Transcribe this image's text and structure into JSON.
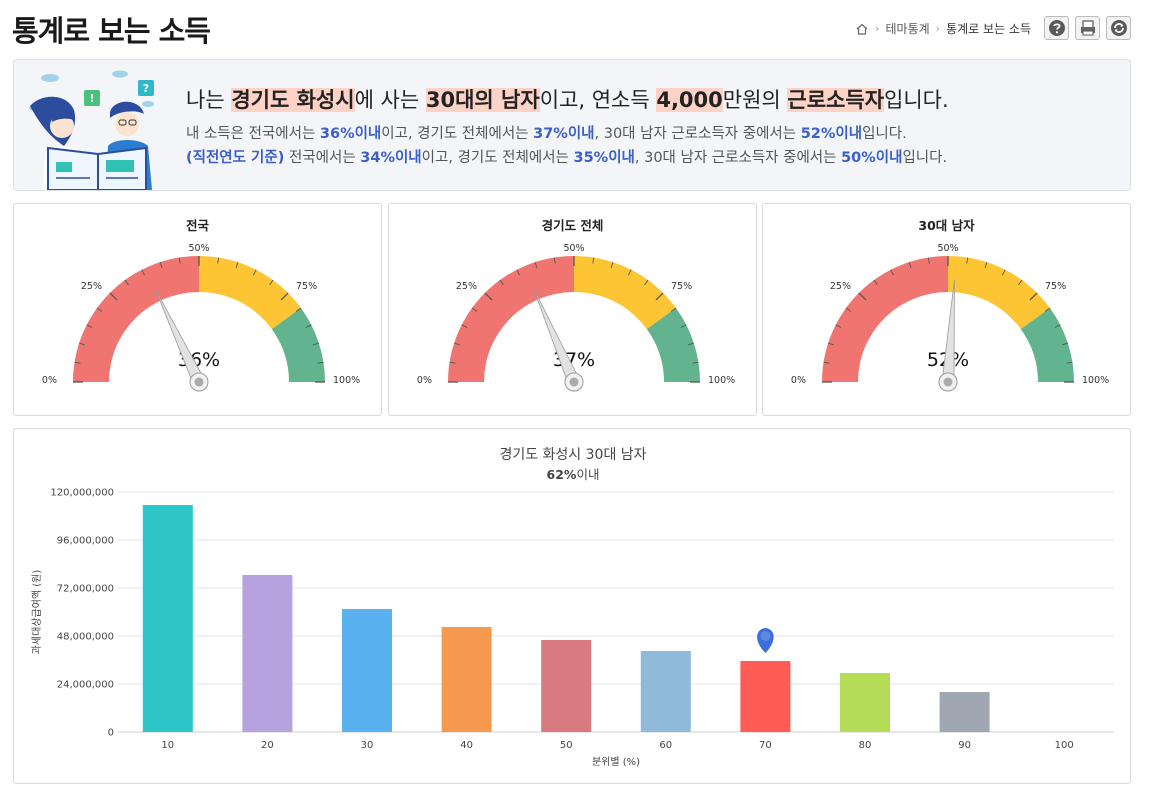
{
  "page": {
    "title": "통계로 보는 소득"
  },
  "breadcrumb": {
    "items": [
      "테마통계",
      "통계로 보는 소득"
    ]
  },
  "summary": {
    "main": [
      {
        "t": "나는 ",
        "h": false
      },
      {
        "t": "경기도 화성시",
        "h": true
      },
      {
        "t": "에 사는 ",
        "h": false
      },
      {
        "t": "30대의 남자",
        "h": true
      },
      {
        "t": "이고, 연소득 ",
        "h": false
      },
      {
        "t": "4,000",
        "h": true
      },
      {
        "t": "만원의 ",
        "h": false
      },
      {
        "t": "근로소득자",
        "h": true
      },
      {
        "t": "입니다.",
        "h": false
      }
    ],
    "line1": [
      {
        "t": "내 소득은 전국에서는 ",
        "b": false
      },
      {
        "t": "36%이내",
        "b": true
      },
      {
        "t": "이고, 경기도 전체에서는 ",
        "b": false
      },
      {
        "t": "37%이내",
        "b": true
      },
      {
        "t": ", 30대 남자 근로소득자 중에서는 ",
        "b": false
      },
      {
        "t": "52%이내",
        "b": true
      },
      {
        "t": "입니다.",
        "b": false
      }
    ],
    "line2": [
      {
        "t": "(직전연도 기준)",
        "b": true
      },
      {
        "t": " 전국에서는 ",
        "b": false
      },
      {
        "t": "34%이내",
        "b": true
      },
      {
        "t": "이고, 경기도 전체에서는 ",
        "b": false
      },
      {
        "t": "35%이내",
        "b": true
      },
      {
        "t": ", 30대 남자 근로소득자 중에서는 ",
        "b": false
      },
      {
        "t": "50%이내",
        "b": true
      },
      {
        "t": "입니다.",
        "b": false
      }
    ]
  },
  "gauges": [
    {
      "title": "전국",
      "value": 36,
      "label": "36%"
    },
    {
      "title": "경기도 전체",
      "value": 37,
      "label": "37%"
    },
    {
      "title": "30대 남자",
      "value": 52,
      "label": "52%"
    }
  ],
  "gauge_ticks": [
    "0%",
    "25%",
    "50%",
    "75%",
    "100%"
  ],
  "gauge_colors": {
    "red": "#f07470",
    "yellow": "#fdc533",
    "green": "#62b48e"
  },
  "chart_data": {
    "type": "bar",
    "title": "경기도 화성시 30대 남자",
    "subtitle_bold": "62%",
    "subtitle_rest": "이내",
    "xlabel": "분위별 (%)",
    "ylabel": "과세대상급여액 (원)",
    "categories": [
      "10",
      "20",
      "30",
      "40",
      "50",
      "60",
      "70",
      "80",
      "90",
      "100"
    ],
    "values": [
      113500000,
      78500000,
      61500000,
      52500000,
      46000000,
      40500000,
      35500000,
      29500000,
      20000000,
      null
    ],
    "colors": [
      "#2ec7c9",
      "#b6a2de",
      "#5ab1ef",
      "#f5994e",
      "#d87a80",
      "#8fbad9",
      "#ff5c55",
      "#b5dc56",
      "#a0a7b3",
      "#cccccc"
    ],
    "ylim": [
      0,
      120000000
    ],
    "yticks": [
      0,
      24000000,
      48000000,
      72000000,
      96000000,
      120000000
    ],
    "ytick_labels": [
      "0",
      "24,000,000",
      "48,000,000",
      "72,000,000",
      "96,000,000",
      "120,000,000"
    ],
    "marker_category": "70",
    "marker_color": "#3c6fd8",
    "grid": true
  }
}
